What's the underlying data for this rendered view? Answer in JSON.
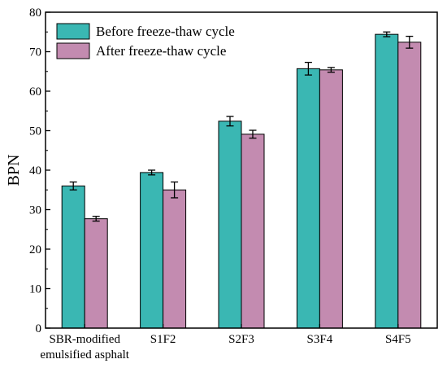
{
  "chart_data": {
    "type": "bar",
    "title": "",
    "xlabel": "",
    "ylabel": "BPN",
    "ylim": [
      0,
      80
    ],
    "yticks": [
      0,
      10,
      20,
      30,
      40,
      50,
      60,
      70,
      80
    ],
    "categories": [
      [
        "SBR-modified",
        "emulsified asphalt"
      ],
      [
        "S1F2"
      ],
      [
        "S2F3"
      ],
      [
        "S3F4"
      ],
      [
        "S4F5"
      ]
    ],
    "series": [
      {
        "name": "Before freeze-thaw cycle",
        "color": "#3ab7b3",
        "values": [
          36.0,
          39.4,
          52.4,
          65.7,
          74.4
        ],
        "errors": [
          1.0,
          0.6,
          1.2,
          1.6,
          0.6
        ]
      },
      {
        "name": "After freeze-thaw cycle",
        "color": "#c38bb0",
        "values": [
          27.7,
          35.0,
          49.1,
          65.4,
          72.4
        ],
        "errors": [
          0.6,
          2.0,
          1.0,
          0.6,
          1.5
        ]
      }
    ],
    "legend_position": "top-left",
    "grid": false
  }
}
